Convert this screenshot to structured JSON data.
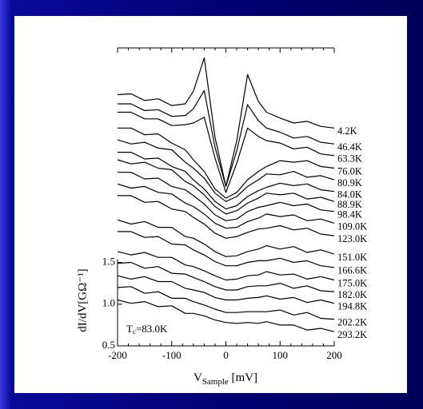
{
  "chart_data": {
    "type": "line",
    "xlabel": {
      "main": "V",
      "subscript": "Sample",
      "unit": " [mV]"
    },
    "ylabel": "dI/dV[GΩ⁻¹]",
    "annotation": {
      "symbol": "T",
      "subscript": "c",
      "text": "=83.0K"
    },
    "xlim": [
      -200,
      200
    ],
    "ylim": [
      0.5,
      4.07
    ],
    "xticks": [
      -200,
      -100,
      0,
      100,
      200
    ],
    "xminorticks": [
      -180,
      -160,
      -140,
      -120,
      -80,
      -60,
      -40,
      -20,
      20,
      40,
      60,
      80,
      120,
      140,
      160,
      180
    ],
    "yticks": [
      0.5,
      {
        "value": 1.0,
        "label": "1.0"
      },
      1.5
    ],
    "x": [
      -200,
      -175,
      -150,
      -125,
      -100,
      -75,
      -60,
      -40,
      -20,
      0,
      20,
      40,
      60,
      75,
      100,
      125,
      150,
      175,
      200
    ],
    "series": [
      {
        "name": "4.2K",
        "color": "#000000",
        "values": [
          3.51,
          3.52,
          3.44,
          3.46,
          3.38,
          3.4,
          3.55,
          3.95,
          3.0,
          2.41,
          2.96,
          3.75,
          3.43,
          3.3,
          3.23,
          3.17,
          3.19,
          3.13,
          3.11
        ]
      },
      {
        "name": "46.4K",
        "color": "#000000",
        "values": [
          3.4,
          3.4,
          3.32,
          3.33,
          3.25,
          3.26,
          3.34,
          3.56,
          2.88,
          2.41,
          2.84,
          3.39,
          3.2,
          3.11,
          3.06,
          2.99,
          3.01,
          2.94,
          2.92
        ]
      },
      {
        "name": "63.3K",
        "color": "#000000",
        "values": [
          3.3,
          3.3,
          3.22,
          3.22,
          3.14,
          3.15,
          3.17,
          3.24,
          2.75,
          2.34,
          2.69,
          3.11,
          3.01,
          2.96,
          2.93,
          2.86,
          2.88,
          2.8,
          2.78
        ]
      },
      {
        "name": "76.0K",
        "color": "#000000",
        "values": [
          3.11,
          3.11,
          3.03,
          3.04,
          2.93,
          2.85,
          2.73,
          2.59,
          2.38,
          2.27,
          2.34,
          2.49,
          2.59,
          2.65,
          2.72,
          2.7,
          2.72,
          2.65,
          2.63
        ]
      },
      {
        "name": "80.9K",
        "color": "#000000",
        "values": [
          2.97,
          2.92,
          2.94,
          2.87,
          2.85,
          2.7,
          2.63,
          2.51,
          2.33,
          2.23,
          2.29,
          2.41,
          2.49,
          2.56,
          2.55,
          2.59,
          2.52,
          2.54,
          2.49
        ]
      },
      {
        "name": "84.0K",
        "color": "#000000",
        "values": [
          2.82,
          2.82,
          2.74,
          2.75,
          2.65,
          2.59,
          2.49,
          2.38,
          2.23,
          2.14,
          2.18,
          2.29,
          2.36,
          2.4,
          2.45,
          2.42,
          2.44,
          2.37,
          2.35
        ]
      },
      {
        "name": "88.9K",
        "color": "#000000",
        "values": [
          2.73,
          2.68,
          2.7,
          2.63,
          2.61,
          2.47,
          2.42,
          2.31,
          2.17,
          2.08,
          2.12,
          2.21,
          2.27,
          2.33,
          2.31,
          2.33,
          2.26,
          2.28,
          2.23
        ]
      },
      {
        "name": "98.4K",
        "color": "#000000",
        "values": [
          2.58,
          2.58,
          2.5,
          2.51,
          2.41,
          2.37,
          2.3,
          2.2,
          2.07,
          2.0,
          2.02,
          2.11,
          2.16,
          2.18,
          2.22,
          2.18,
          2.2,
          2.13,
          2.11
        ]
      },
      {
        "name": "109.0K",
        "color": "#000000",
        "values": [
          2.44,
          2.39,
          2.41,
          2.34,
          2.32,
          2.21,
          2.17,
          2.08,
          1.97,
          1.91,
          1.92,
          1.99,
          2.03,
          2.08,
          2.05,
          2.07,
          2.0,
          2.02,
          1.97
        ]
      },
      {
        "name": "123.0K",
        "color": "#000000",
        "values": [
          2.3,
          2.3,
          2.22,
          2.23,
          2.14,
          2.11,
          2.04,
          1.96,
          1.85,
          1.79,
          1.81,
          1.86,
          1.9,
          1.91,
          1.94,
          1.89,
          1.91,
          1.84,
          1.82
        ]
      },
      {
        "name": "151.0K",
        "color": "#000000",
        "values": [
          2.01,
          1.96,
          1.99,
          1.92,
          1.92,
          1.81,
          1.79,
          1.72,
          1.63,
          1.57,
          1.58,
          1.63,
          1.66,
          1.7,
          1.66,
          1.69,
          1.62,
          1.65,
          1.6
        ]
      },
      {
        "name": "166.6K",
        "color": "#000000",
        "values": [
          1.87,
          1.87,
          1.8,
          1.81,
          1.72,
          1.71,
          1.65,
          1.59,
          1.51,
          1.46,
          1.46,
          1.5,
          1.52,
          1.52,
          1.55,
          1.5,
          1.52,
          1.46,
          1.44
        ]
      },
      {
        "name": "175.0K",
        "color": "#000000",
        "values": [
          1.63,
          1.59,
          1.62,
          1.56,
          1.56,
          1.47,
          1.45,
          1.4,
          1.34,
          1.29,
          1.3,
          1.34,
          1.35,
          1.39,
          1.35,
          1.36,
          1.3,
          1.33,
          1.29
        ]
      },
      {
        "name": "182.0K",
        "color": "#000000",
        "values": [
          1.49,
          1.5,
          1.43,
          1.45,
          1.37,
          1.36,
          1.32,
          1.27,
          1.21,
          1.17,
          1.17,
          1.21,
          1.22,
          1.22,
          1.25,
          1.19,
          1.22,
          1.16,
          1.15
        ]
      },
      {
        "name": "194.8K",
        "color": "#000000",
        "values": [
          1.34,
          1.3,
          1.33,
          1.27,
          1.27,
          1.19,
          1.17,
          1.14,
          1.08,
          1.05,
          1.05,
          1.07,
          1.08,
          1.1,
          1.06,
          1.08,
          1.02,
          1.05,
          1.01
        ]
      },
      {
        "name": "202.2K",
        "color": "#000000",
        "values": [
          1.2,
          1.21,
          1.13,
          1.15,
          1.07,
          1.07,
          1.03,
          0.99,
          0.94,
          0.9,
          0.9,
          0.91,
          0.91,
          0.91,
          0.93,
          0.87,
          0.9,
          0.83,
          0.82
        ]
      },
      {
        "name": "293.2K",
        "color": "#000000",
        "values": [
          1.05,
          1.01,
          1.03,
          0.97,
          0.98,
          0.89,
          0.89,
          0.86,
          0.81,
          0.78,
          0.77,
          0.78,
          0.77,
          0.79,
          0.75,
          0.75,
          0.69,
          0.71,
          0.67
        ]
      }
    ]
  }
}
